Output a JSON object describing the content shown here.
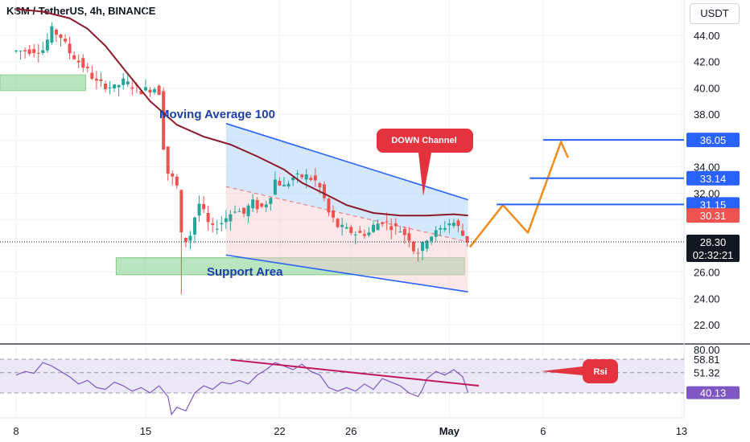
{
  "header": {
    "title": "KSM / TetherUS, 4h, BINANCE",
    "currency": "USDT"
  },
  "colors": {
    "bull": "#26a69a",
    "bear": "#ef5350",
    "ma": "#8b1a2b",
    "channel_line": "#2962ff",
    "channel_fill": "#b3d4f5",
    "support_fill": "#7fcf8a",
    "projection": "#f28c1c",
    "rsi_line": "#7e57c2",
    "rsi_trend": "#c2185b",
    "callout": "#e5323f"
  },
  "chart_data": [
    {
      "type": "candlestick",
      "title": "",
      "xlabel": "",
      "ylabel": "",
      "x_ticks": [
        "8",
        "15",
        "22",
        "26",
        "May",
        "6",
        "13"
      ],
      "y_ticks": [
        "22.00",
        "24.00",
        "26.00",
        "28.00",
        "30.00",
        "32.00",
        "34.00",
        "36.00",
        "38.00",
        "40.00",
        "42.00",
        "44.00"
      ],
      "ylim": [
        20.5,
        45.8
      ],
      "price_path": [
        [
          0,
          42.8
        ],
        [
          3,
          42.9
        ],
        [
          4,
          44.4
        ],
        [
          5,
          43.9
        ],
        [
          6,
          42.7
        ],
        [
          8,
          41.3
        ],
        [
          9,
          40.4
        ],
        [
          11,
          40.0
        ],
        [
          12,
          40.5
        ],
        [
          14,
          39.8
        ],
        [
          15.5,
          40.0
        ],
        [
          16.3,
          39.5
        ],
        [
          16.6,
          33.6
        ],
        [
          17.2,
          33.5
        ],
        [
          18.0,
          32.5
        ],
        [
          18.5,
          28.8
        ],
        [
          19.3,
          28.2
        ],
        [
          19.8,
          29.8
        ],
        [
          20.5,
          31.2
        ],
        [
          21.0,
          30.5
        ],
        [
          21.8,
          29.2
        ],
        [
          23.0,
          29.8
        ],
        [
          24.5,
          30.8
        ],
        [
          25.6,
          30.4
        ],
        [
          26.3,
          31.4
        ],
        [
          27.3,
          30.8
        ],
        [
          28.3,
          31.5
        ],
        [
          29.0,
          33.0
        ],
        [
          30.0,
          32.5
        ],
        [
          31.0,
          33.2
        ],
        [
          32.5,
          33.3
        ],
        [
          33.5,
          32.9
        ],
        [
          34.2,
          32.2
        ],
        [
          35.0,
          30.5
        ],
        [
          36.0,
          29.5
        ],
        [
          37.0,
          29.2
        ],
        [
          38.2,
          28.9
        ],
        [
          39.5,
          29.0
        ],
        [
          40.0,
          29.5
        ],
        [
          41.0,
          29.9
        ],
        [
          42.0,
          29.5
        ],
        [
          43.0,
          29.2
        ],
        [
          44.0,
          28.6
        ],
        [
          44.7,
          27.4
        ],
        [
          45.3,
          27.8
        ],
        [
          46.0,
          28.6
        ],
        [
          47.0,
          29.0
        ],
        [
          48.0,
          29.5
        ],
        [
          48.8,
          29.9
        ],
        [
          49.5,
          29.4
        ],
        [
          50.0,
          28.8
        ],
        [
          50.6,
          28.3
        ]
      ],
      "low_wicks": [
        [
          18.6,
          24.3
        ],
        [
          44.8,
          26.8
        ],
        [
          45.5,
          26.9
        ]
      ],
      "moving_average_100": [
        [
          0,
          46.0
        ],
        [
          3,
          45.8
        ],
        [
          6,
          45.3
        ],
        [
          8,
          44.5
        ],
        [
          10,
          43.2
        ],
        [
          12,
          41.5
        ],
        [
          15,
          39.0
        ],
        [
          18,
          37.2
        ],
        [
          21,
          36.3
        ],
        [
          24,
          35.7
        ],
        [
          27,
          34.8
        ],
        [
          30,
          33.8
        ],
        [
          32,
          32.8
        ],
        [
          35,
          31.8
        ],
        [
          37,
          31.1
        ],
        [
          40,
          30.5
        ],
        [
          43,
          30.3
        ],
        [
          46,
          30.3
        ],
        [
          49,
          30.4
        ],
        [
          50.6,
          30.31
        ]
      ],
      "down_channel": {
        "upper": [
          [
            23.5,
            37.3
          ],
          [
            50.6,
            31.5
          ]
        ],
        "lower": [
          [
            23.5,
            27.3
          ],
          [
            50.6,
            24.5
          ]
        ],
        "mid_dashed": [
          [
            23.5,
            32.5
          ],
          [
            50.6,
            28.3
          ]
        ]
      },
      "support_area": {
        "x_range": [
          11.2,
          50.2
        ],
        "y_range": [
          25.8,
          27.1
        ]
      },
      "left_zone": {
        "x_range": [
          0,
          7.8
        ],
        "y_range": [
          39.8,
          41.0
        ]
      },
      "projection_path": [
        [
          50.8,
          27.9
        ],
        [
          54.5,
          31.1
        ],
        [
          57.3,
          29.0
        ],
        [
          61.0,
          35.9
        ],
        [
          61.8,
          34.7
        ]
      ],
      "levels": [
        {
          "value": 36.05,
          "label": "36.05",
          "x_start": 59
        },
        {
          "value": 33.14,
          "label": "33.14",
          "x_start": 57.5
        },
        {
          "value": 31.15,
          "label": "31.15",
          "x_start": 53.8
        }
      ],
      "price_tags": [
        {
          "value": 30.31,
          "label": "30.31",
          "kind": "ma"
        },
        {
          "value": 28.3,
          "label": "28.30",
          "kind": "last",
          "countdown": "02:32:21"
        }
      ],
      "annotations": {
        "moving_average": "Moving Average 100",
        "down_channel": "DOWN Channel",
        "support": "Support Area"
      }
    },
    {
      "type": "line",
      "title": "",
      "name": "RSI",
      "ylim": [
        30,
        84
      ],
      "y_ticks": [
        "80.00"
      ],
      "levels": [
        {
          "value": 58.81,
          "label": "58.81"
        },
        {
          "value": 51.32,
          "label": "51.32"
        }
      ],
      "current": {
        "value": 40.13,
        "label": "40.13"
      },
      "series_points": [
        [
          0,
          50
        ],
        [
          1,
          52
        ],
        [
          2,
          51
        ],
        [
          3,
          57
        ],
        [
          4,
          55
        ],
        [
          5,
          52
        ],
        [
          6,
          49
        ],
        [
          7,
          45
        ],
        [
          8,
          47
        ],
        [
          9,
          43
        ],
        [
          10,
          42
        ],
        [
          11,
          46
        ],
        [
          12,
          44
        ],
        [
          13,
          41
        ],
        [
          14,
          43
        ],
        [
          15,
          40
        ],
        [
          16,
          44
        ],
        [
          17,
          38
        ],
        [
          17.4,
          28
        ],
        [
          18,
          32
        ],
        [
          19,
          30
        ],
        [
          19.5,
          35
        ],
        [
          20,
          40
        ],
        [
          21,
          44
        ],
        [
          22,
          42
        ],
        [
          23,
          46
        ],
        [
          24,
          45
        ],
        [
          25,
          47
        ],
        [
          26,
          45
        ],
        [
          27,
          50
        ],
        [
          28,
          53
        ],
        [
          29,
          57
        ],
        [
          30,
          55
        ],
        [
          31,
          53
        ],
        [
          32,
          56
        ],
        [
          33,
          52
        ],
        [
          34,
          50
        ],
        [
          35,
          43
        ],
        [
          36,
          41
        ],
        [
          37,
          43
        ],
        [
          38,
          41
        ],
        [
          39,
          45
        ],
        [
          40,
          42
        ],
        [
          41,
          48
        ],
        [
          42,
          46
        ],
        [
          43,
          44
        ],
        [
          44,
          40
        ],
        [
          45,
          38
        ],
        [
          45.5,
          42
        ],
        [
          46,
          48
        ],
        [
          47,
          52
        ],
        [
          48,
          50
        ],
        [
          49,
          53
        ],
        [
          50,
          49
        ],
        [
          50.6,
          40.13
        ]
      ],
      "trendline": [
        [
          24,
          58.5
        ],
        [
          51.8,
          44
        ]
      ],
      "callout": "Rsi"
    }
  ]
}
